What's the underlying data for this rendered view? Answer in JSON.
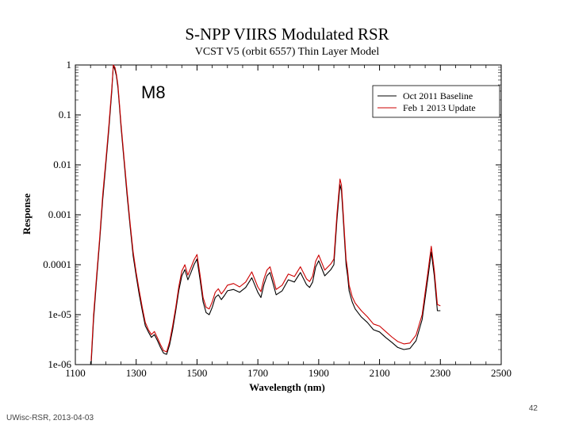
{
  "chart_data": {
    "type": "line",
    "title": "S-NPP VIIRS Modulated RSR",
    "subtitle": "VCST V5 (orbit 6557) Thin Layer Model",
    "band_label": "M8",
    "xlabel": "Wavelength (nm)",
    "ylabel": "Response",
    "xlim": [
      1100,
      2500
    ],
    "ylim": [
      1e-06,
      1
    ],
    "yscale": "log",
    "x_ticks": [
      "1100",
      "1300",
      "1500",
      "1700",
      "1900",
      "2100",
      "2300",
      "2500"
    ],
    "y_ticks": [
      "1",
      "0.1",
      "0.01",
      "0.001",
      "0.0001",
      "1e-05",
      "1e-06"
    ],
    "legend": {
      "placement": "top-right",
      "entries": [
        "Oct 2011 Baseline",
        "Feb 1 2013 Update"
      ]
    },
    "series": [
      {
        "name": "Oct 2011 Baseline",
        "color": "#000000",
        "x": [
          1152,
          1160,
          1170,
          1180,
          1190,
          1200,
          1210,
          1220,
          1225,
          1230,
          1235,
          1240,
          1245,
          1250,
          1260,
          1270,
          1280,
          1290,
          1300,
          1310,
          1320,
          1330,
          1340,
          1350,
          1360,
          1370,
          1380,
          1390,
          1400,
          1410,
          1420,
          1430,
          1440,
          1450,
          1460,
          1470,
          1480,
          1490,
          1500,
          1510,
          1520,
          1530,
          1540,
          1550,
          1560,
          1570,
          1580,
          1590,
          1600,
          1620,
          1640,
          1660,
          1680,
          1700,
          1710,
          1720,
          1730,
          1740,
          1760,
          1780,
          1800,
          1820,
          1840,
          1860,
          1870,
          1880,
          1890,
          1900,
          1920,
          1940,
          1950,
          1960,
          1970,
          1975,
          1980,
          1985,
          1990,
          1995,
          2000,
          2010,
          2020,
          2040,
          2060,
          2080,
          2100,
          2120,
          2140,
          2160,
          2180,
          2200,
          2220,
          2240,
          2260,
          2270,
          2280,
          2290,
          2300
        ],
        "y": [
          1e-06,
          8e-06,
          5e-05,
          0.0003,
          0.002,
          0.01,
          0.05,
          0.3,
          1.0,
          0.8,
          0.6,
          0.35,
          0.15,
          0.06,
          0.012,
          0.0025,
          0.0006,
          0.00015,
          6e-05,
          2.5e-05,
          1.2e-05,
          6e-06,
          4.5e-06,
          3.5e-06,
          4e-06,
          3e-06,
          2.2e-06,
          1.7e-06,
          1.6e-06,
          2.5e-06,
          5e-06,
          1.2e-05,
          3e-05,
          6e-05,
          8e-05,
          5e-05,
          7e-05,
          0.0001,
          0.00013,
          5e-05,
          1.8e-05,
          1.1e-05,
          1e-05,
          1.4e-05,
          2.2e-05,
          2.5e-05,
          2e-05,
          2.4e-05,
          3e-05,
          3.2e-05,
          2.8e-05,
          3.5e-05,
          5.5e-05,
          2.8e-05,
          2.2e-05,
          4e-05,
          6e-05,
          7e-05,
          2.5e-05,
          3e-05,
          5e-05,
          4.5e-05,
          7e-05,
          4e-05,
          3.5e-05,
          4.5e-05,
          9e-05,
          0.00012,
          6e-05,
          8e-05,
          0.0001,
          0.0008,
          0.004,
          0.003,
          0.001,
          0.0003,
          0.0001,
          6e-05,
          3e-05,
          1.8e-05,
          1.3e-05,
          9e-06,
          7e-06,
          5e-06,
          4.5e-06,
          3.5e-06,
          2.8e-06,
          2.2e-06,
          2e-06,
          2.1e-06,
          3e-06,
          8e-06,
          6e-05,
          0.00018,
          6e-05,
          1.2e-05,
          1.2e-05
        ]
      },
      {
        "name": "Feb 1 2013 Update",
        "color": "#cc0000",
        "x": [
          1152,
          1160,
          1170,
          1180,
          1190,
          1200,
          1210,
          1220,
          1225,
          1230,
          1235,
          1240,
          1245,
          1250,
          1260,
          1270,
          1280,
          1290,
          1300,
          1310,
          1320,
          1330,
          1340,
          1350,
          1360,
          1370,
          1380,
          1390,
          1400,
          1410,
          1420,
          1430,
          1440,
          1450,
          1460,
          1470,
          1480,
          1490,
          1500,
          1510,
          1520,
          1530,
          1540,
          1550,
          1560,
          1570,
          1580,
          1590,
          1600,
          1620,
          1640,
          1660,
          1680,
          1700,
          1710,
          1720,
          1730,
          1740,
          1760,
          1780,
          1800,
          1820,
          1840,
          1860,
          1870,
          1880,
          1890,
          1900,
          1920,
          1940,
          1950,
          1960,
          1970,
          1975,
          1980,
          1985,
          1990,
          1995,
          2000,
          2010,
          2020,
          2040,
          2060,
          2080,
          2100,
          2120,
          2140,
          2160,
          2180,
          2200,
          2220,
          2240,
          2260,
          2270,
          2280,
          2290,
          2300
        ],
        "y": [
          1.2e-06,
          1e-05,
          6e-05,
          0.00035,
          0.0025,
          0.012,
          0.06,
          0.35,
          1.0,
          0.9,
          0.65,
          0.4,
          0.17,
          0.07,
          0.014,
          0.003,
          0.0007,
          0.00018,
          7e-05,
          3e-05,
          1.4e-05,
          7e-06,
          5e-06,
          4e-06,
          4.6e-06,
          3.4e-06,
          2.5e-06,
          1.9e-06,
          1.8e-06,
          2.9e-06,
          6e-06,
          1.4e-05,
          3.6e-05,
          7.5e-05,
          0.0001,
          6.2e-05,
          8.8e-05,
          0.000125,
          0.00016,
          6.2e-05,
          2.2e-05,
          1.4e-05,
          1.3e-05,
          1.8e-05,
          2.8e-05,
          3.3e-05,
          2.6e-05,
          3.1e-05,
          3.9e-05,
          4.2e-05,
          3.6e-05,
          4.5e-05,
          7.2e-05,
          3.6e-05,
          2.9e-05,
          5.2e-05,
          7.8e-05,
          9.1e-05,
          3.2e-05,
          3.9e-05,
          6.5e-05,
          5.8e-05,
          9.1e-05,
          5.2e-05,
          4.6e-05,
          5.9e-05,
          0.000117,
          0.000156,
          7.8e-05,
          0.000104,
          0.00013,
          0.00104,
          0.0052,
          0.0039,
          0.0013,
          0.00039,
          0.00013,
          7.8e-05,
          3.9e-05,
          2.3e-05,
          1.7e-05,
          1.2e-05,
          9.1e-06,
          6.5e-06,
          5.9e-06,
          4.6e-06,
          3.6e-06,
          2.9e-06,
          2.6e-06,
          2.7e-06,
          3.9e-06,
          1e-05,
          7.8e-05,
          0.000234,
          7.8e-05,
          1.6e-05,
          1.5e-05
        ]
      }
    ]
  },
  "footer": {
    "source": "UWisc-RSR, 2013-04-03",
    "page_number": "42"
  }
}
